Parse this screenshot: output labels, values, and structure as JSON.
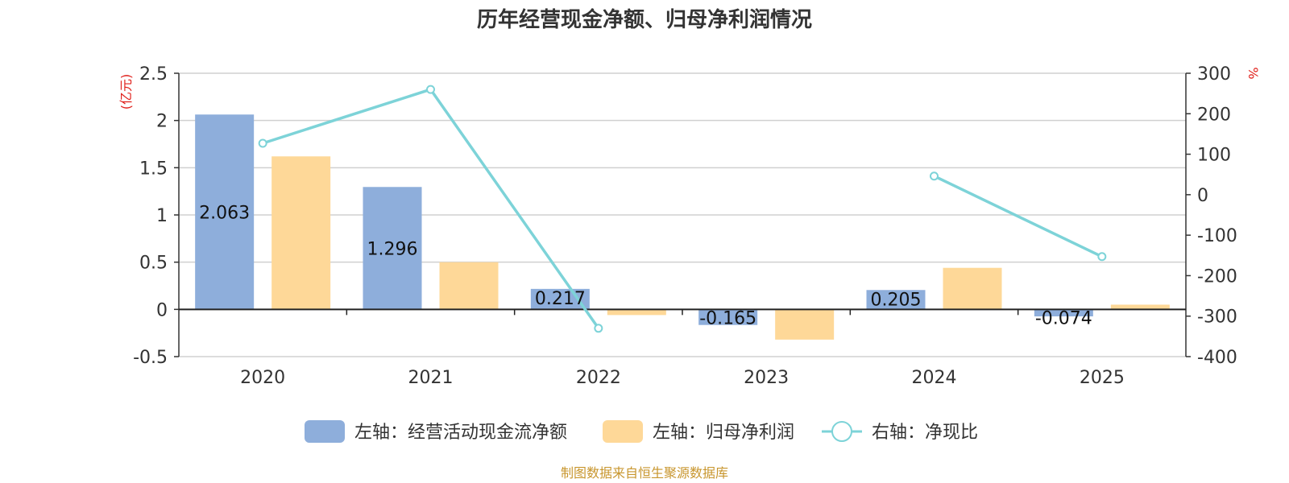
{
  "chart_data": {
    "type": "bar",
    "title": "历年经营现金净额、归母净利润情况",
    "categories": [
      "2020",
      "2021",
      "2022",
      "2023",
      "2024",
      "2025"
    ],
    "left_axis": {
      "unit": "(亿元)",
      "ylim": [
        -0.5,
        2.5
      ],
      "ticks": [
        -0.5,
        0,
        0.5,
        1,
        1.5,
        2,
        2.5
      ],
      "tick_labels": [
        "-0.5",
        "0",
        "0.5",
        "1",
        "1.5",
        "2",
        "2.5"
      ]
    },
    "right_axis": {
      "unit": "%",
      "ylim": [
        -400,
        300
      ],
      "ticks": [
        -400,
        -300,
        -200,
        -100,
        0,
        100,
        200,
        300
      ],
      "tick_labels": [
        "-400",
        "-300",
        "-200",
        "-100",
        "0",
        "100",
        "200",
        "300"
      ]
    },
    "series": [
      {
        "name": "左轴：经营活动现金流净额",
        "type": "bar",
        "axis": "left",
        "color": "#8eaedb",
        "values": [
          2.063,
          1.296,
          0.217,
          -0.165,
          0.205,
          -0.074
        ],
        "labels": [
          "2.063",
          "1.296",
          "0.217",
          "-0.165",
          "0.205",
          "-0.074"
        ]
      },
      {
        "name": "左轴：归母净利润",
        "type": "bar",
        "axis": "left",
        "color": "#fed898",
        "values": [
          1.62,
          0.5,
          -0.06,
          -0.32,
          0.44,
          0.05
        ]
      },
      {
        "name": "右轴：净现比",
        "type": "line",
        "axis": "right",
        "color": "#7dd3d8",
        "values": [
          127,
          260,
          -330,
          null,
          46,
          -153
        ]
      }
    ],
    "grid": true,
    "legend": "bottom-center"
  },
  "source": "制图数据来自恒生聚源数据库"
}
